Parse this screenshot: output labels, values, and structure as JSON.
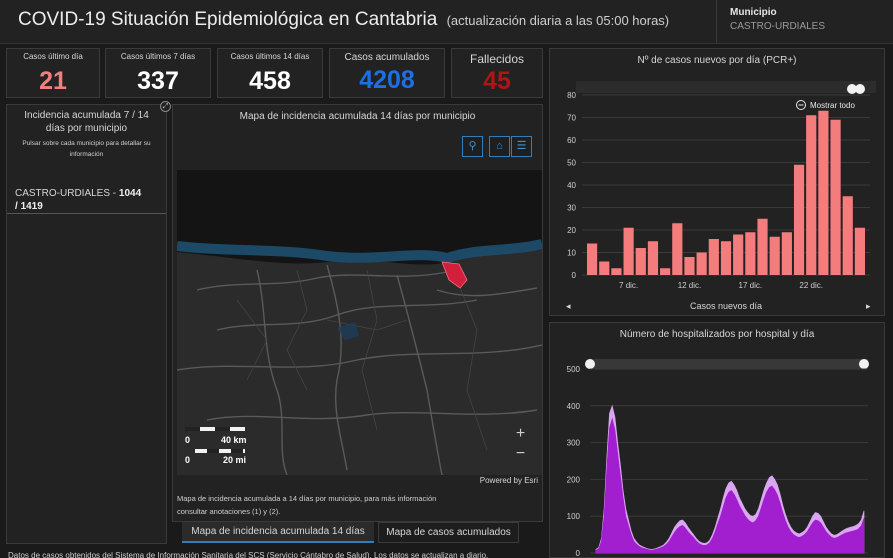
{
  "header": {
    "title": "COVID-19 Situación Epidemiológica en Cantabria",
    "subtitle": "(actualización diaria a las 05:00 horas)",
    "municipio_label": "Municipio",
    "municipio_value": "CASTRO-URDIALES"
  },
  "kpis": [
    {
      "label": "Casos último día",
      "value": "21",
      "color": "#f08080"
    },
    {
      "label": "Casos últimos 7 días",
      "value": "337",
      "color": "#ffffff"
    },
    {
      "label": "Casos últimos 14 días",
      "value": "458",
      "color": "#ffffff"
    },
    {
      "label": "Casos acumulados",
      "value": "4208",
      "color": "#1e6fe0"
    },
    {
      "label": "Fallecidos",
      "value": "45",
      "color": "#b01414"
    }
  ],
  "incidence_panel": {
    "title": "Incidencia acumulada 7 / 14 días por municipio",
    "subtitle": "Pulsar sobre cada municipio para detallar su información",
    "entry_name": "CASTRO-URDIALES - ",
    "entry_value_7": "1044",
    "entry_sep": "/ ",
    "entry_value_14": "1419"
  },
  "map_panel": {
    "title": "Mapa de incidencia acumulada 14 días por municipio",
    "scale_km": "40 km",
    "scale_mi": "20 mi",
    "scale_zero": "0",
    "attribution": "Powered by Esri",
    "note": "Mapa de incidencia acumulada a 14 días por municipio, para más información consultar anotaciones (1) y (2).",
    "tabs": [
      "Mapa de incidencia acumulada 14 días",
      "Mapa de casos acumulados"
    ],
    "zoom_in": "+",
    "zoom_out": "−",
    "search_icon": "⚲",
    "home_icon": "⌂",
    "list_icon": "☰"
  },
  "footer_text": "Datos de casos obtenidos del Sistema de Información Sanitaria del SCS (Servicio Cántabro de Salud). Los datos se actualizan a diario.",
  "chart_data": [
    {
      "type": "bar",
      "title": "Nº de casos nuevos por día (PCR+)",
      "xlabel": "Casos nuevos día",
      "ylabel": "",
      "ylim": [
        0,
        80
      ],
      "yticks": [
        0,
        10,
        20,
        30,
        40,
        50,
        60,
        70,
        80
      ],
      "xtick_labels": [
        {
          "index": 3,
          "label": "7 dic."
        },
        {
          "index": 8,
          "label": "12 dic."
        },
        {
          "index": 13,
          "label": "17 dic."
        },
        {
          "index": 18,
          "label": "22 dic."
        }
      ],
      "values": [
        14,
        6,
        3,
        21,
        12,
        15,
        3,
        23,
        8,
        10,
        16,
        15,
        18,
        19,
        25,
        17,
        19,
        49,
        71,
        73,
        69,
        35,
        21
      ],
      "color": "#f47c7c",
      "reset_label": "Mostrar todo"
    },
    {
      "type": "area",
      "title": "Número de hospitalizados por hospital y día",
      "ylim": [
        0,
        500
      ],
      "yticks": [
        0,
        100,
        200,
        300,
        400,
        500
      ],
      "series": [
        {
          "values": [
            10,
            15,
            40,
            120,
            260,
            380,
            400,
            370,
            300,
            240,
            170,
            120,
            90,
            60,
            40,
            30,
            22,
            18,
            15,
            12,
            10,
            10,
            12,
            15,
            18,
            22,
            30,
            40,
            55,
            70,
            80,
            88,
            90,
            82,
            70,
            60,
            50,
            40,
            32,
            28,
            26,
            28,
            35,
            50,
            70,
            95,
            120,
            150,
            175,
            190,
            195,
            185,
            170,
            150,
            135,
            120,
            110,
            102,
            100,
            105,
            120,
            145,
            170,
            190,
            205,
            210,
            200,
            185,
            160,
            130,
            105,
            85,
            70,
            60,
            55,
            52,
            55,
            60,
            70,
            85,
            100,
            110,
            108,
            100,
            85,
            70,
            60,
            52,
            48,
            50,
            55,
            60,
            65,
            68,
            70,
            72,
            75,
            80,
            90,
            115
          ],
          "color": "#d9a7ef"
        },
        {
          "values": [
            8,
            12,
            32,
            100,
            230,
            340,
            365,
            335,
            270,
            210,
            150,
            100,
            75,
            50,
            32,
            24,
            18,
            14,
            12,
            10,
            8,
            8,
            10,
            12,
            15,
            18,
            24,
            32,
            44,
            56,
            66,
            72,
            75,
            68,
            58,
            50,
            42,
            33,
            26,
            22,
            20,
            22,
            28,
            40,
            58,
            80,
            100,
            125,
            150,
            165,
            170,
            160,
            145,
            128,
            115,
            102,
            92,
            85,
            82,
            88,
            100,
            122,
            145,
            165,
            178,
            182,
            172,
            158,
            136,
            110,
            88,
            70,
            58,
            50,
            45,
            42,
            45,
            50,
            58,
            70,
            82,
            90,
            88,
            82,
            70,
            58,
            50,
            43,
            40,
            42,
            46,
            50,
            54,
            56,
            58,
            60,
            62,
            66,
            74,
            95
          ],
          "color": "#a21fd0"
        }
      ]
    }
  ]
}
